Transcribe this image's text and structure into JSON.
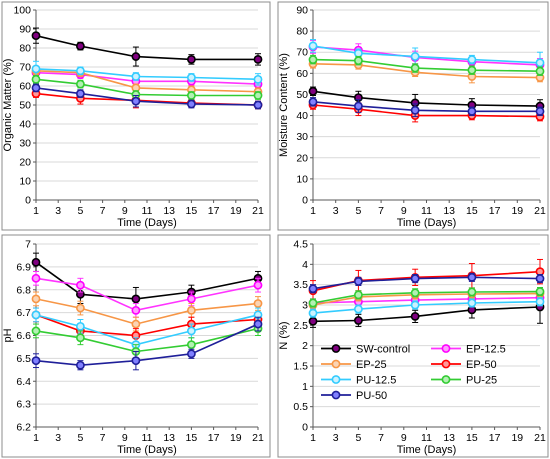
{
  "chart_data": [
    {
      "type": "line",
      "title": "",
      "xlabel": "Time (Days)",
      "ylabel": "Organic Matter (%)",
      "ylim": [
        0,
        100
      ],
      "yticks": [
        0,
        10,
        20,
        30,
        40,
        50,
        60,
        70,
        80,
        90,
        100
      ],
      "ytick_labels": [
        "0",
        "10",
        "20",
        "30",
        "40",
        "50",
        "60",
        "70",
        "80",
        "90",
        "100"
      ],
      "xlim": [
        1,
        21
      ],
      "xticks": [
        1,
        3,
        5,
        7,
        9,
        11,
        13,
        15,
        17,
        19,
        21
      ],
      "xtick_labels": [
        "1",
        "3",
        "5",
        "7",
        "9",
        "11",
        "13",
        "15",
        "17",
        "19",
        "21"
      ],
      "x": [
        1,
        5,
        10,
        15,
        21
      ],
      "grid": "horizontal",
      "series": [
        {
          "name": "SW-control",
          "values": [
            86.5,
            81,
            75.5,
            74,
            74
          ],
          "err": [
            4,
            2,
            5,
            2.5,
            3
          ]
        },
        {
          "name": "EP-12.5",
          "values": [
            67,
            66,
            62.5,
            62.5,
            61
          ],
          "err": [
            3,
            2,
            3,
            2,
            2
          ]
        },
        {
          "name": "EP-25",
          "values": [
            68,
            67,
            59,
            58,
            57
          ],
          "err": [
            2,
            2,
            2,
            2,
            2
          ]
        },
        {
          "name": "EP-50",
          "values": [
            56,
            53.5,
            52.5,
            51,
            50
          ],
          "err": [
            2,
            3,
            4,
            2,
            2
          ]
        },
        {
          "name": "PU-12.5",
          "values": [
            69,
            68,
            65,
            64.5,
            63.5
          ],
          "err": [
            4,
            2,
            2,
            2,
            3
          ]
        },
        {
          "name": "PU-25",
          "values": [
            63.5,
            61,
            55.5,
            55,
            55
          ],
          "err": [
            2,
            2,
            2,
            2,
            2
          ]
        },
        {
          "name": "PU-50",
          "values": [
            59,
            56,
            52,
            50.5,
            50
          ],
          "err": [
            2,
            2,
            3,
            2,
            2
          ]
        }
      ]
    },
    {
      "type": "line",
      "title": "",
      "xlabel": "Time (Days)",
      "ylabel": "Moisture Content (%)",
      "ylim": [
        0,
        90
      ],
      "yticks": [
        0,
        10,
        20,
        30,
        40,
        50,
        60,
        70,
        80,
        90
      ],
      "ytick_labels": [
        "0",
        "10",
        "20",
        "30",
        "40",
        "50",
        "60",
        "70",
        "80",
        "90"
      ],
      "xlim": [
        1,
        21
      ],
      "xticks": [
        1,
        3,
        5,
        7,
        9,
        11,
        13,
        15,
        17,
        19,
        21
      ],
      "xtick_labels": [
        "1",
        "3",
        "5",
        "7",
        "9",
        "11",
        "13",
        "15",
        "17",
        "19",
        "21"
      ],
      "x": [
        1,
        5,
        10,
        15,
        21
      ],
      "grid": "horizontal",
      "series": [
        {
          "name": "SW-control",
          "values": [
            51.5,
            48.5,
            46,
            45,
            44.5
          ],
          "err": [
            2,
            3,
            4,
            3,
            3
          ]
        },
        {
          "name": "EP-12.5",
          "values": [
            72.5,
            71,
            67.5,
            65.5,
            64
          ],
          "err": [
            3,
            3,
            3,
            2,
            3
          ]
        },
        {
          "name": "EP-25",
          "values": [
            64.5,
            64,
            60.5,
            58.5,
            58
          ],
          "err": [
            2,
            2,
            2,
            3,
            2
          ]
        },
        {
          "name": "EP-50",
          "values": [
            45,
            43,
            40,
            40,
            39.5
          ],
          "err": [
            2,
            3,
            3,
            2,
            2
          ]
        },
        {
          "name": "PU-12.5",
          "values": [
            73,
            69.5,
            68,
            66.5,
            65
          ],
          "err": [
            3,
            2,
            4,
            2,
            5
          ]
        },
        {
          "name": "PU-25",
          "values": [
            66.5,
            66,
            62.5,
            61.5,
            61
          ],
          "err": [
            2,
            2,
            2,
            2,
            2
          ]
        },
        {
          "name": "PU-50",
          "values": [
            46.5,
            44.5,
            42.5,
            42,
            42
          ],
          "err": [
            2,
            3,
            3,
            2,
            2
          ]
        }
      ]
    },
    {
      "type": "line",
      "title": "",
      "xlabel": "Time (Days)",
      "ylabel": "pH",
      "ylim": [
        6.2,
        7
      ],
      "yticks": [
        6.2,
        6.3,
        6.4,
        6.5,
        6.6,
        6.7,
        6.8,
        6.9,
        7
      ],
      "ytick_labels": [
        "6.2",
        "6.3",
        "6.4",
        "6.5",
        "6.6",
        "6.7",
        "6.8",
        "6.9",
        "7"
      ],
      "xlim": [
        1,
        21
      ],
      "xticks": [
        1,
        3,
        5,
        7,
        9,
        11,
        13,
        15,
        17,
        19,
        21
      ],
      "xtick_labels": [
        "1",
        "3",
        "5",
        "7",
        "9",
        "11",
        "13",
        "15",
        "17",
        "19",
        "21"
      ],
      "x": [
        1,
        5,
        10,
        15,
        21
      ],
      "grid": "horizontal",
      "series": [
        {
          "name": "SW-control",
          "values": [
            6.92,
            6.78,
            6.76,
            6.79,
            6.85
          ],
          "err": [
            0.04,
            0.04,
            0.05,
            0.03,
            0.03
          ]
        },
        {
          "name": "EP-12.5",
          "values": [
            6.85,
            6.82,
            6.71,
            6.76,
            6.82
          ],
          "err": [
            0.03,
            0.03,
            0.03,
            0.03,
            0.03
          ]
        },
        {
          "name": "EP-25",
          "values": [
            6.76,
            6.72,
            6.65,
            6.71,
            6.74
          ],
          "err": [
            0.03,
            0.03,
            0.03,
            0.03,
            0.03
          ]
        },
        {
          "name": "EP-50",
          "values": [
            6.69,
            6.62,
            6.6,
            6.65,
            6.67
          ],
          "err": [
            0.03,
            0.03,
            0.03,
            0.03,
            0.03
          ]
        },
        {
          "name": "PU-12.5",
          "values": [
            6.69,
            6.64,
            6.56,
            6.62,
            6.69
          ],
          "err": [
            0.03,
            0.03,
            0.03,
            0.03,
            0.03
          ]
        },
        {
          "name": "PU-25",
          "values": [
            6.62,
            6.59,
            6.53,
            6.56,
            6.63
          ],
          "err": [
            0.03,
            0.03,
            0.03,
            0.03,
            0.03
          ]
        },
        {
          "name": "PU-50",
          "values": [
            6.49,
            6.47,
            6.49,
            6.52,
            6.65
          ],
          "err": [
            0.03,
            0.02,
            0.04,
            0.02,
            0.03
          ]
        }
      ]
    },
    {
      "type": "line",
      "title": "",
      "xlabel": "Time (Days)",
      "ylabel": "N (%)",
      "ylim": [
        0,
        4.5
      ],
      "yticks": [
        0,
        0.5,
        1,
        1.5,
        2,
        2.5,
        3,
        3.5,
        4,
        4.5
      ],
      "ytick_labels": [
        "0",
        "0.5",
        "1",
        "1.5",
        "2",
        "2.5",
        "3",
        "3.5",
        "4",
        "4.5"
      ],
      "xlim": [
        1,
        21
      ],
      "xticks": [
        1,
        3,
        5,
        7,
        9,
        11,
        13,
        15,
        17,
        19,
        21
      ],
      "xtick_labels": [
        "1",
        "3",
        "5",
        "7",
        "9",
        "11",
        "13",
        "15",
        "17",
        "19",
        "21"
      ],
      "x": [
        1,
        5,
        10,
        15,
        21
      ],
      "grid": "horizontal",
      "legend": "bottom-center",
      "series": [
        {
          "name": "SW-control",
          "values": [
            2.6,
            2.62,
            2.72,
            2.88,
            2.95
          ],
          "err": [
            0.15,
            0.15,
            0.15,
            0.2,
            0.4
          ]
        },
        {
          "name": "EP-12.5",
          "values": [
            3.05,
            3.08,
            3.12,
            3.15,
            3.18
          ],
          "err": [
            0.1,
            0.1,
            0.1,
            0.1,
            0.1
          ]
        },
        {
          "name": "EP-25",
          "values": [
            3.0,
            3.2,
            3.25,
            3.27,
            3.28
          ],
          "err": [
            0.1,
            0.1,
            0.1,
            0.1,
            0.1
          ]
        },
        {
          "name": "EP-50",
          "values": [
            3.35,
            3.6,
            3.68,
            3.72,
            3.82
          ],
          "err": [
            0.25,
            0.25,
            0.2,
            0.3,
            0.3
          ]
        },
        {
          "name": "PU-12.5",
          "values": [
            2.8,
            2.9,
            3.0,
            3.05,
            3.08
          ],
          "err": [
            0.1,
            0.1,
            0.1,
            0.1,
            0.1
          ]
        },
        {
          "name": "PU-25",
          "values": [
            3.05,
            3.25,
            3.3,
            3.32,
            3.33
          ],
          "err": [
            0.1,
            0.1,
            0.1,
            0.1,
            0.1
          ]
        },
        {
          "name": "PU-50",
          "values": [
            3.4,
            3.58,
            3.65,
            3.68,
            3.65
          ],
          "err": [
            0.1,
            0.1,
            0.1,
            0.1,
            0.1
          ]
        }
      ]
    }
  ],
  "styles": {
    "SW-control": {
      "line": "#000000",
      "marker": "#800080",
      "markerStroke": "#000000"
    },
    "EP-12.5": {
      "line": "#ff33ff",
      "marker": "#ff99ff",
      "markerStroke": "#ff00ff"
    },
    "EP-25": {
      "line": "#f79646",
      "marker": "#fbd4b4",
      "markerStroke": "#f79646"
    },
    "EP-50": {
      "line": "#ff0000",
      "marker": "#ff9999",
      "markerStroke": "#ff0000"
    },
    "PU-12.5": {
      "line": "#33ccff",
      "marker": "#ccf2ff",
      "markerStroke": "#33ccff"
    },
    "PU-25": {
      "line": "#33cc33",
      "marker": "#b3f0b3",
      "markerStroke": "#33cc33"
    },
    "PU-50": {
      "line": "#1f1f99",
      "marker": "#8080ff",
      "markerStroke": "#1f1f99"
    }
  },
  "legend_order": [
    "SW-control",
    "EP-12.5",
    "EP-25",
    "EP-50",
    "PU-12.5",
    "PU-25",
    "PU-50"
  ]
}
